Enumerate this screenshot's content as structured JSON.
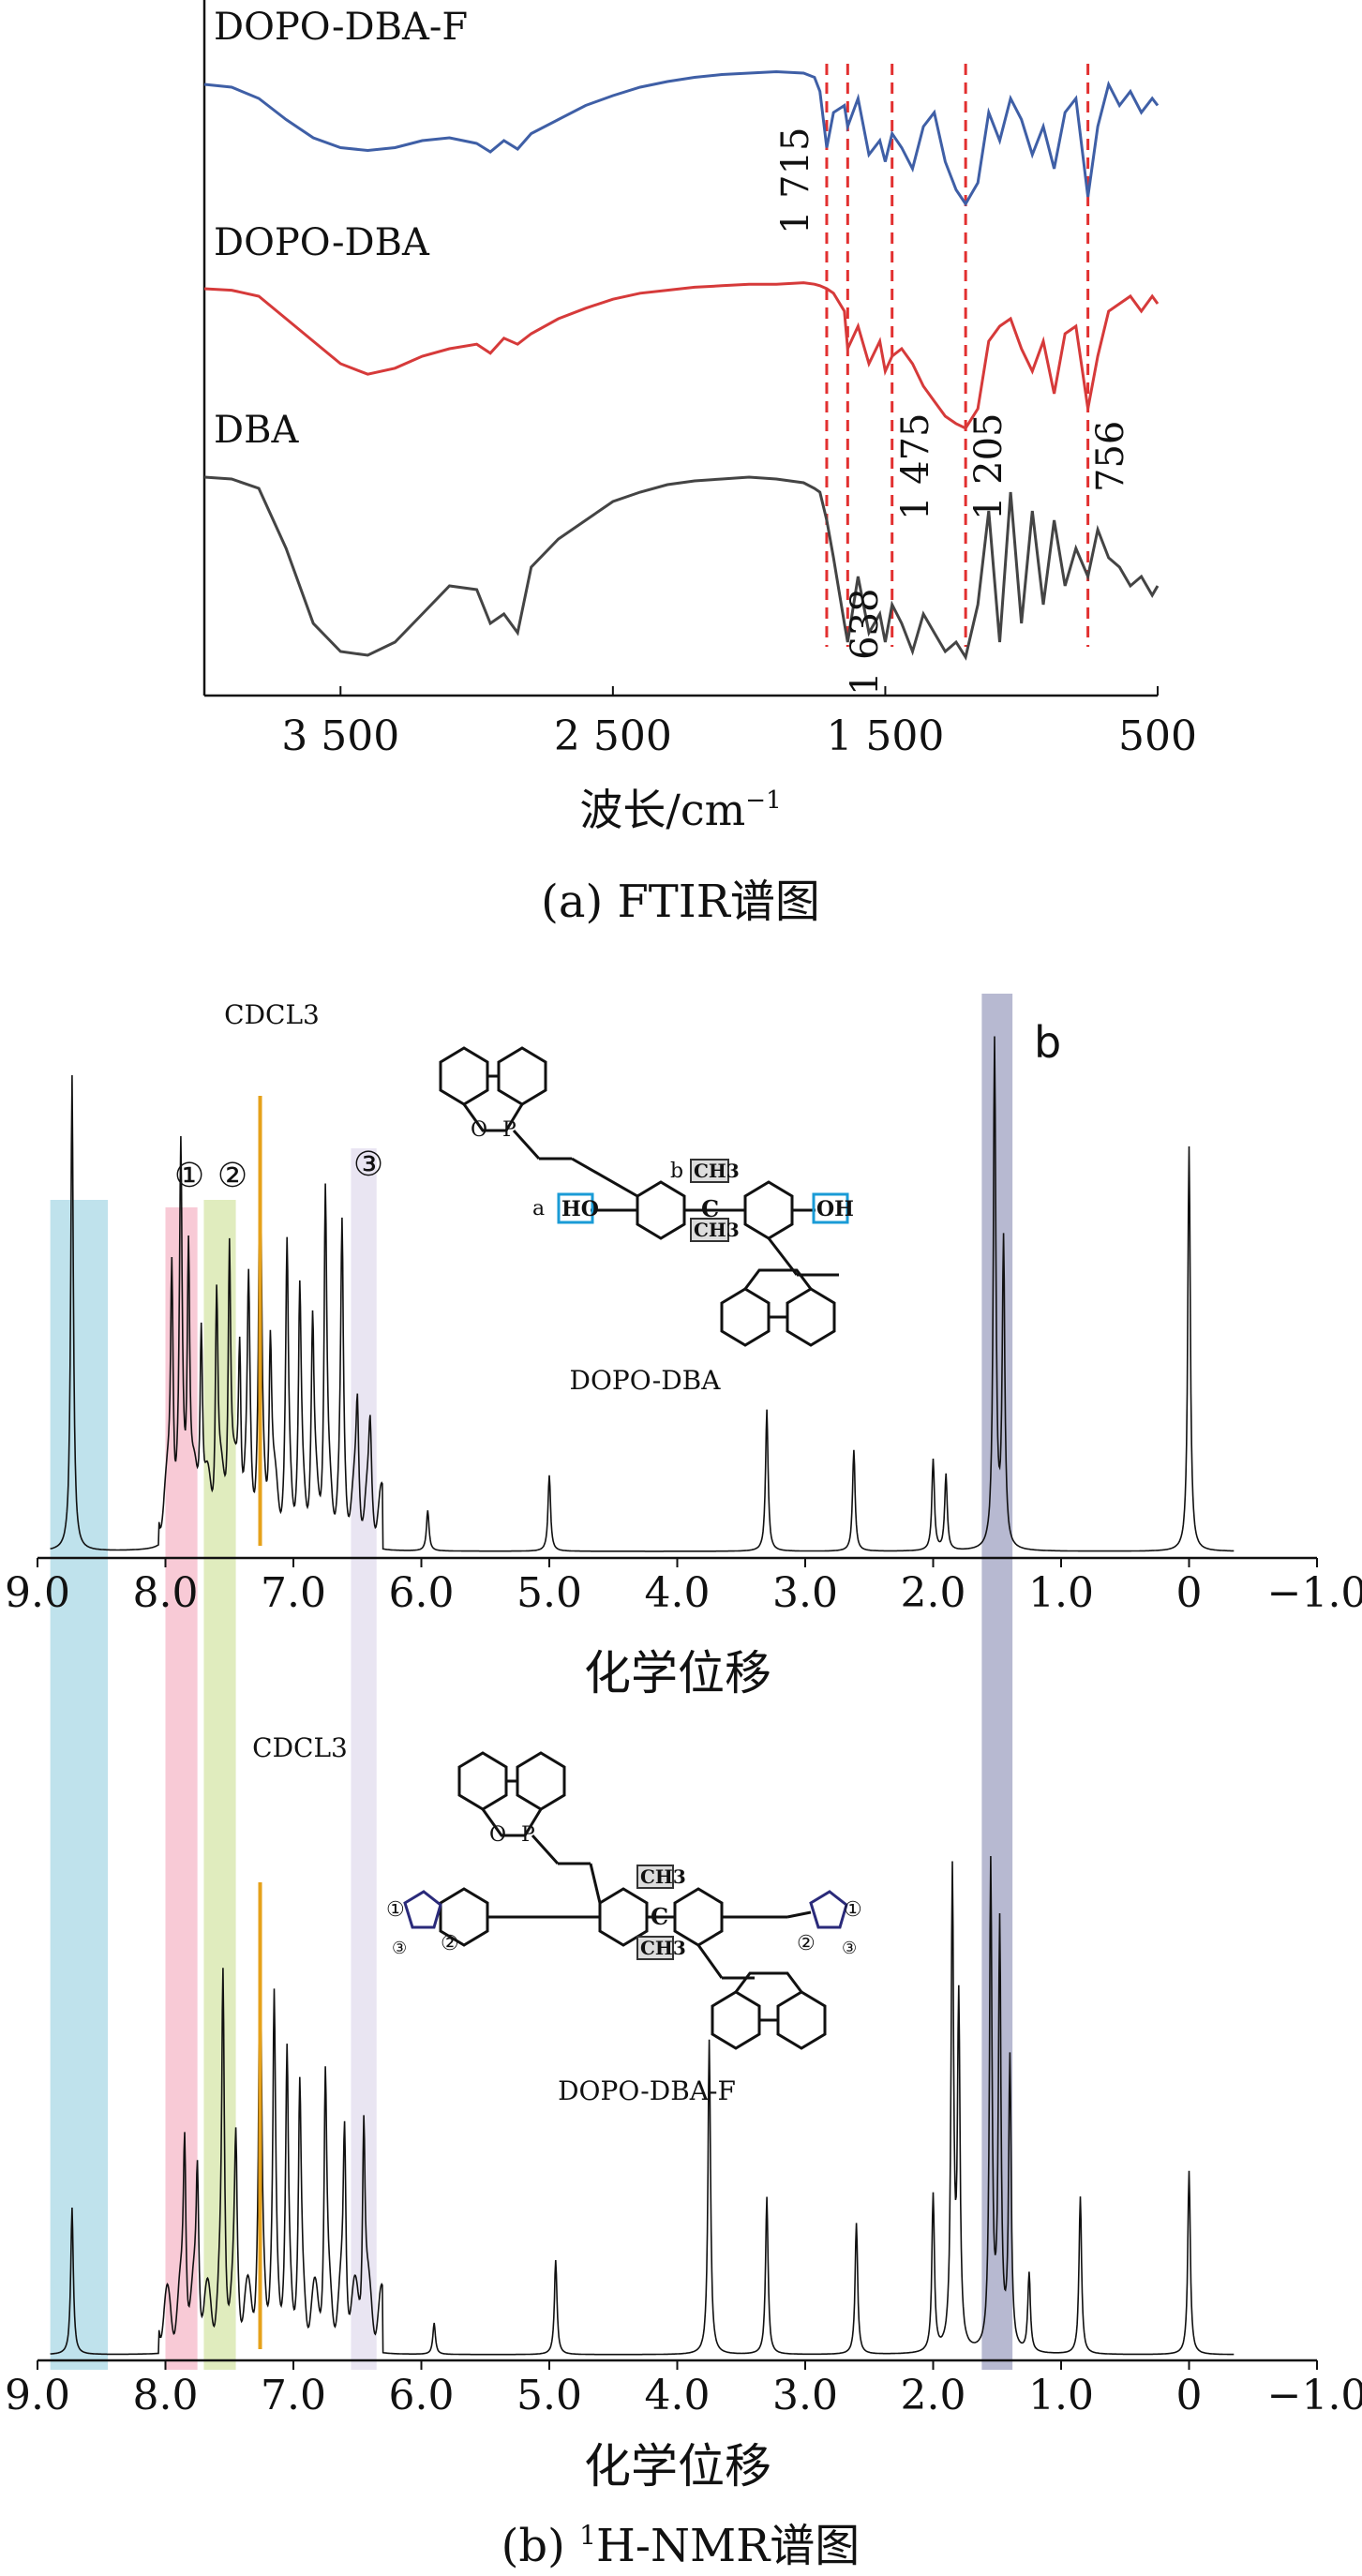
{
  "chart_data": [
    {
      "type": "line",
      "caption": "(a) FTIR谱图",
      "xlabel": "波长/cm",
      "xlabel_sup": "−1",
      "xlim": [
        4000,
        500
      ],
      "x_ticks": [
        3500,
        2500,
        1500,
        500
      ],
      "x_tick_labels": [
        "3 500",
        "2 500",
        "1 500",
        "500"
      ],
      "series": [
        {
          "name": "DOPO-DBA-F",
          "color": "#3f5fa6",
          "x": [
            4000,
            3900,
            3800,
            3700,
            3600,
            3500,
            3400,
            3300,
            3200,
            3100,
            3000,
            2950,
            2900,
            2850,
            2800,
            2700,
            2600,
            2500,
            2400,
            2300,
            2200,
            2100,
            2000,
            1900,
            1800,
            1760,
            1740,
            1715,
            1690,
            1650,
            1638,
            1600,
            1560,
            1520,
            1500,
            1475,
            1440,
            1400,
            1360,
            1320,
            1280,
            1240,
            1205,
            1160,
            1120,
            1080,
            1040,
            1000,
            960,
            920,
            880,
            840,
            800,
            756,
            720,
            680,
            640,
            600,
            560,
            520,
            500
          ],
          "y": [
            0.1,
            0.12,
            0.2,
            0.35,
            0.48,
            0.55,
            0.57,
            0.55,
            0.5,
            0.48,
            0.52,
            0.58,
            0.5,
            0.56,
            0.45,
            0.35,
            0.25,
            0.18,
            0.12,
            0.08,
            0.05,
            0.03,
            0.02,
            0.01,
            0.02,
            0.05,
            0.15,
            0.55,
            0.3,
            0.25,
            0.4,
            0.2,
            0.6,
            0.5,
            0.65,
            0.45,
            0.55,
            0.7,
            0.4,
            0.3,
            0.65,
            0.85,
            0.95,
            0.8,
            0.3,
            0.5,
            0.2,
            0.35,
            0.6,
            0.4,
            0.7,
            0.3,
            0.2,
            0.9,
            0.4,
            0.1,
            0.25,
            0.15,
            0.3,
            0.2,
            0.25
          ]
        },
        {
          "name": "DOPO-DBA",
          "color": "#d63a3a",
          "x": [
            4000,
            3900,
            3800,
            3700,
            3600,
            3500,
            3400,
            3300,
            3200,
            3100,
            3000,
            2950,
            2900,
            2850,
            2800,
            2700,
            2600,
            2500,
            2400,
            2300,
            2200,
            2100,
            2000,
            1900,
            1800,
            1760,
            1740,
            1715,
            1690,
            1650,
            1638,
            1600,
            1560,
            1520,
            1500,
            1475,
            1440,
            1400,
            1360,
            1320,
            1280,
            1240,
            1205,
            1160,
            1120,
            1080,
            1040,
            1000,
            960,
            920,
            880,
            840,
            800,
            756,
            720,
            680,
            640,
            600,
            560,
            520,
            500
          ],
          "y": [
            0.05,
            0.06,
            0.1,
            0.25,
            0.4,
            0.55,
            0.62,
            0.58,
            0.5,
            0.45,
            0.42,
            0.48,
            0.38,
            0.42,
            0.35,
            0.25,
            0.18,
            0.12,
            0.08,
            0.06,
            0.04,
            0.03,
            0.02,
            0.02,
            0.01,
            0.02,
            0.03,
            0.05,
            0.08,
            0.2,
            0.45,
            0.3,
            0.55,
            0.4,
            0.6,
            0.5,
            0.45,
            0.55,
            0.7,
            0.8,
            0.9,
            0.95,
            0.98,
            0.85,
            0.4,
            0.3,
            0.25,
            0.45,
            0.6,
            0.4,
            0.75,
            0.35,
            0.3,
            0.85,
            0.5,
            0.2,
            0.15,
            0.1,
            0.2,
            0.1,
            0.15
          ]
        },
        {
          "name": "DBA",
          "color": "#444444",
          "x": [
            4000,
            3900,
            3800,
            3700,
            3600,
            3500,
            3400,
            3300,
            3200,
            3100,
            3000,
            2950,
            2900,
            2850,
            2800,
            2700,
            2600,
            2500,
            2400,
            2300,
            2200,
            2100,
            2000,
            1900,
            1800,
            1760,
            1740,
            1715,
            1690,
            1650,
            1638,
            1600,
            1560,
            1520,
            1500,
            1475,
            1440,
            1400,
            1360,
            1320,
            1280,
            1240,
            1205,
            1160,
            1120,
            1080,
            1040,
            1000,
            960,
            920,
            880,
            840,
            800,
            756,
            720,
            680,
            640,
            600,
            560,
            520,
            500
          ],
          "y": [
            0.02,
            0.03,
            0.08,
            0.4,
            0.8,
            0.95,
            0.97,
            0.9,
            0.75,
            0.6,
            0.62,
            0.8,
            0.75,
            0.85,
            0.5,
            0.35,
            0.25,
            0.15,
            0.1,
            0.06,
            0.04,
            0.03,
            0.02,
            0.03,
            0.05,
            0.08,
            0.1,
            0.25,
            0.45,
            0.8,
            0.9,
            0.55,
            0.85,
            0.75,
            0.9,
            0.7,
            0.8,
            0.95,
            0.75,
            0.85,
            0.95,
            0.9,
            0.98,
            0.7,
            0.2,
            0.9,
            0.1,
            0.8,
            0.2,
            0.7,
            0.25,
            0.6,
            0.4,
            0.55,
            0.3,
            0.45,
            0.5,
            0.6,
            0.55,
            0.65,
            0.6
          ]
        }
      ],
      "annotations": [
        {
          "x": 1715,
          "label": "1 715"
        },
        {
          "x": 1638,
          "label": "1 638"
        },
        {
          "x": 1475,
          "label": "1 475"
        },
        {
          "x": 1205,
          "label": "1 205"
        },
        {
          "x": 756,
          "label": "756"
        }
      ]
    },
    {
      "type": "line",
      "caption": "(b) ¹H-NMR谱图",
      "xlabel": "化学位移",
      "xlim": [
        9.0,
        -1.0
      ],
      "x_ticks": [
        9,
        8,
        7,
        6,
        5,
        4,
        3,
        2,
        1,
        0,
        -1
      ],
      "x_tick_labels": [
        "9.0",
        "8.0",
        "7.0",
        "6.0",
        "5.0",
        "4.0",
        "3.0",
        "2.0",
        "1.0",
        "0",
        "−1.0"
      ],
      "bands": [
        {
          "from": 8.9,
          "to": 8.45,
          "color": "#a9d8e6"
        },
        {
          "from": 8.0,
          "to": 7.75,
          "color": "#f6b8c8"
        },
        {
          "from": 7.7,
          "to": 7.45,
          "color": "#d6e6a8"
        },
        {
          "from": 6.55,
          "to": 6.35,
          "color": "#e2dcee"
        },
        {
          "from": 1.62,
          "to": 1.38,
          "color": "#9fa2c2"
        }
      ],
      "band_labels": [
        "①",
        "②",
        "③",
        "b"
      ],
      "spectra": [
        {
          "name": "DOPO-DBA",
          "solvent_label": "CDCL3",
          "solvent_x": 7.26,
          "peaks": [
            [
              8.73,
              0.94
            ],
            [
              7.95,
              0.5
            ],
            [
              7.88,
              0.65
            ],
            [
              7.82,
              0.55
            ],
            [
              7.72,
              0.4
            ],
            [
              7.6,
              0.45
            ],
            [
              7.5,
              0.55
            ],
            [
              7.42,
              0.35
            ],
            [
              7.35,
              0.4
            ],
            [
              7.26,
              0.72
            ],
            [
              7.18,
              0.35
            ],
            [
              7.05,
              0.48
            ],
            [
              6.95,
              0.4
            ],
            [
              6.85,
              0.35
            ],
            [
              6.75,
              0.62
            ],
            [
              6.62,
              0.52
            ],
            [
              6.5,
              0.2
            ],
            [
              6.4,
              0.15
            ],
            [
              5.95,
              0.08
            ],
            [
              5.0,
              0.15
            ],
            [
              3.3,
              0.28
            ],
            [
              2.62,
              0.2
            ],
            [
              2.0,
              0.18
            ],
            [
              1.9,
              0.15
            ],
            [
              1.52,
              1.0
            ],
            [
              1.45,
              0.6
            ],
            [
              0.0,
              0.8
            ]
          ]
        },
        {
          "name": "DOPO-DBA-F",
          "solvent_label": "CDCL3",
          "solvent_x": 7.26,
          "peaks": [
            [
              8.73,
              0.28
            ],
            [
              7.85,
              0.35
            ],
            [
              7.75,
              0.28
            ],
            [
              7.55,
              0.62
            ],
            [
              7.45,
              0.3
            ],
            [
              7.26,
              0.72
            ],
            [
              7.15,
              0.55
            ],
            [
              7.05,
              0.45
            ],
            [
              6.95,
              0.4
            ],
            [
              6.75,
              0.45
            ],
            [
              6.6,
              0.35
            ],
            [
              6.45,
              0.4
            ],
            [
              5.9,
              0.06
            ],
            [
              4.95,
              0.18
            ],
            [
              3.75,
              0.6
            ],
            [
              3.3,
              0.3
            ],
            [
              2.6,
              0.25
            ],
            [
              2.0,
              0.3
            ],
            [
              1.85,
              0.9
            ],
            [
              1.8,
              0.65
            ],
            [
              1.55,
              0.92
            ],
            [
              1.48,
              0.8
            ],
            [
              1.4,
              0.55
            ],
            [
              1.25,
              0.15
            ],
            [
              0.85,
              0.3
            ],
            [
              0.0,
              0.35
            ]
          ]
        }
      ]
    }
  ],
  "ftir": {
    "series_labels": [
      "DOPO-DBA-F",
      "DOPO-DBA",
      "DBA"
    ],
    "peak_labels": [
      "1 715",
      "1 638",
      "1 475",
      "1 205",
      "756"
    ],
    "tick_labels": [
      "3 500",
      "2 500",
      "1 500",
      "500"
    ],
    "xlabel": "波长/cm",
    "xlabel_sup": "−1",
    "caption": "(a) FTIR谱图"
  },
  "nmr": {
    "top_title": "DOPO-DBA",
    "bottom_title": "DOPO-DBA-F",
    "solvent_top": "CDCL3",
    "solvent_bottom": "CDCL3",
    "band_label_1": "①",
    "band_label_2": "②",
    "band_label_3": "③",
    "band_label_b": "b",
    "tick_labels": [
      "9.0",
      "8.0",
      "7.0",
      "6.0",
      "5.0",
      "4.0",
      "3.0",
      "2.0",
      "1.0",
      "0",
      "−1.0"
    ],
    "xlabel": "化学位移",
    "caption_prefix": "(b) ",
    "caption_sup": "1",
    "caption_rest": "H-NMR谱图",
    "struct_top": {
      "label_a": "a",
      "label_b": "b",
      "ho": "HO",
      "oh": "OH",
      "ch3_1": "CH3",
      "ch3_2": "CH3",
      "c": "C",
      "p": "P",
      "o": "O"
    },
    "struct_bottom": {
      "n1": "①",
      "n2": "②",
      "n3": "③",
      "ch3_1": "CH3",
      "ch3_2": "CH3",
      "c": "C",
      "p": "P",
      "o": "O"
    }
  }
}
